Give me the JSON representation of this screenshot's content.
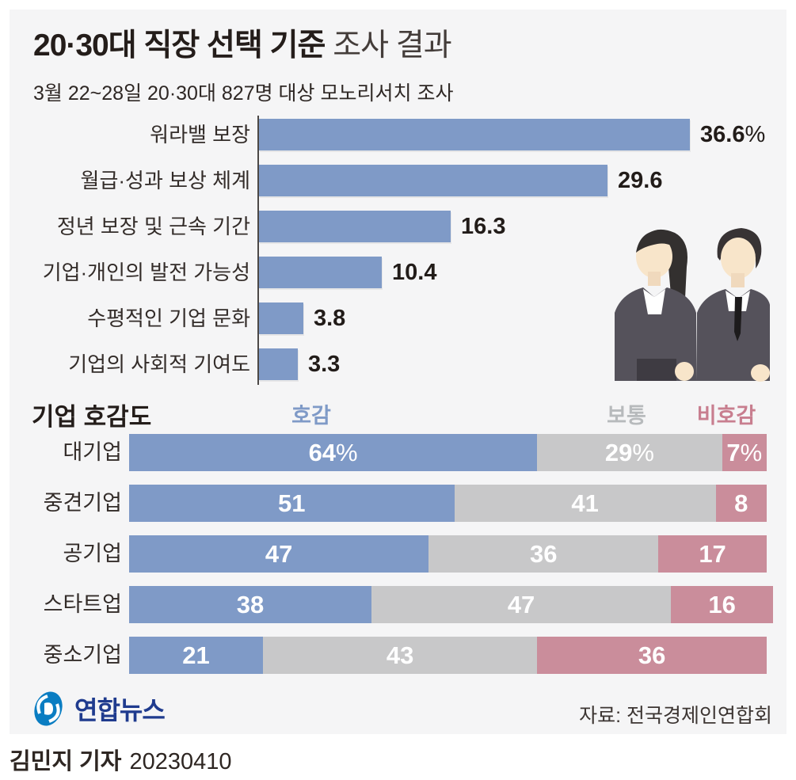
{
  "header": {
    "title_bold": "20·30대 직장 선택 기준",
    "title_light": " 조사 결과",
    "subtitle": "3월 22~28일 20·30대 827명 대상 모노리서치 조사"
  },
  "chart_data": [
    {
      "type": "bar",
      "orientation": "horizontal",
      "title": "직장 선택 기준",
      "categories": [
        "워라밸 보장",
        "월급·성과 보상 체계",
        "정년 보장 및 근속 기간",
        "기업·개인의 발전 가능성",
        "수평적인 기업 문화",
        "기업의 사회적 기여도"
      ],
      "values": [
        36.6,
        29.6,
        16.3,
        10.4,
        3.8,
        3.3
      ],
      "value_labels": [
        "36.6%",
        "29.6",
        "16.3",
        "10.4",
        "3.8",
        "3.3"
      ],
      "unit": "%",
      "xlim": [
        0,
        40
      ],
      "color": "#7f9ac7",
      "grid": false
    },
    {
      "type": "bar",
      "subtype": "stacked",
      "orientation": "horizontal",
      "title": "기업 호감도",
      "categories": [
        "대기업",
        "중견기업",
        "공기업",
        "스타트업",
        "중소기업"
      ],
      "series": [
        {
          "name": "호감",
          "color": "#7f9ac7",
          "legend_color": "#7f9ac7",
          "values": [
            64,
            51,
            47,
            38,
            21
          ]
        },
        {
          "name": "보통",
          "color": "#c8c8c9",
          "legend_color": "#b7babc",
          "values": [
            29,
            41,
            36,
            47,
            43
          ]
        },
        {
          "name": "비호감",
          "color": "#ca8d9b",
          "legend_color": "#c87e8f",
          "values": [
            7,
            8,
            17,
            16,
            36
          ]
        }
      ],
      "value_labels": [
        [
          "64%",
          "29%",
          "7%"
        ],
        [
          "51",
          "41",
          "8"
        ],
        [
          "47",
          "36",
          "17"
        ],
        [
          "38",
          "47",
          "16"
        ],
        [
          "21",
          "43",
          "36"
        ]
      ],
      "xlim": [
        0,
        100
      ],
      "legend_position": "top"
    }
  ],
  "footer": {
    "logo_text": "연합뉴스",
    "source": "자료: 전국경제인연합회",
    "byline_name": "김민지 기자",
    "byline_date": "20230410"
  },
  "colors": {
    "panel_bg": "#f5f5f6",
    "favorable_blue": "#7f9ac7",
    "neutral_gray": "#c8c8c9",
    "unfavorable_pink": "#ca8d9b",
    "logo_blue": "#0a7dc2",
    "logo_navy": "#1f3b8e"
  }
}
